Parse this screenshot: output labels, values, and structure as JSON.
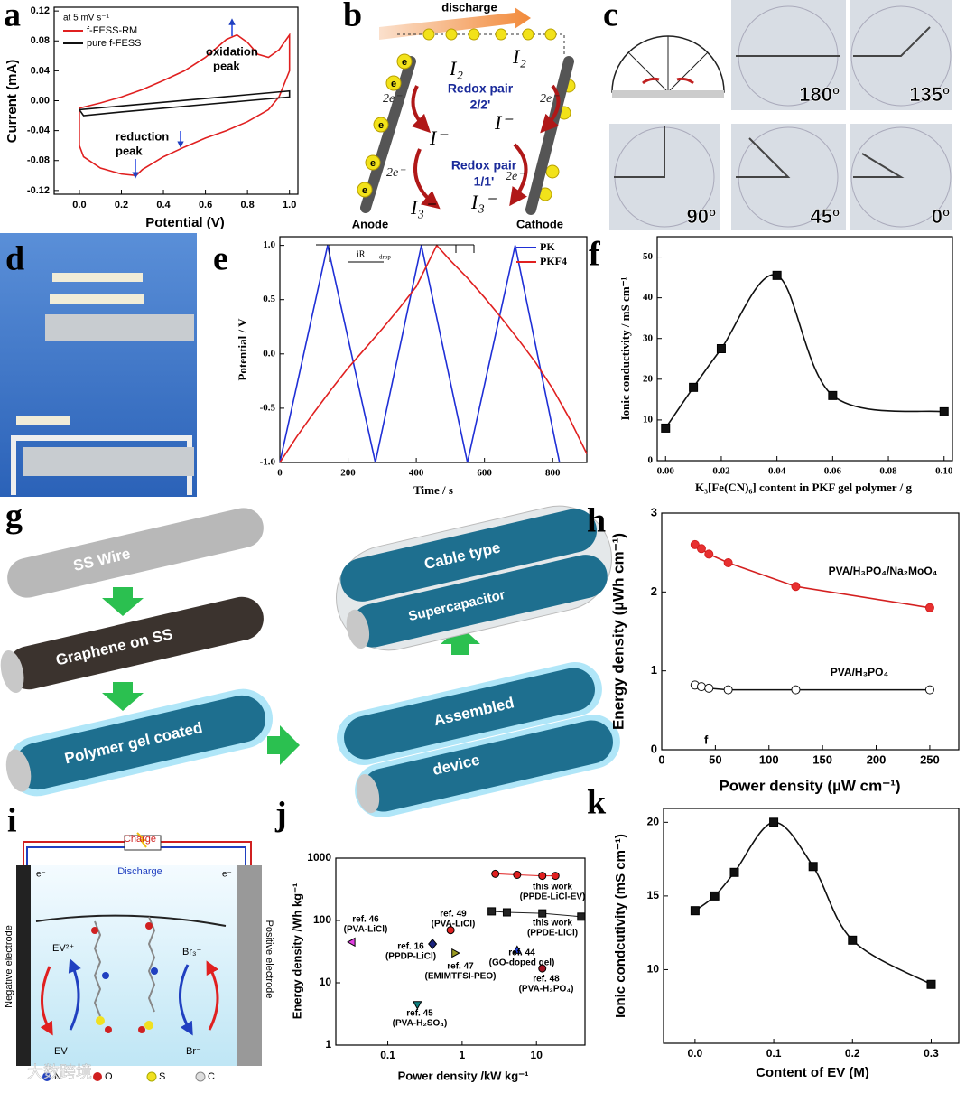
{
  "chart_data": [
    {
      "type": "line",
      "xlabel": "Potential (V)",
      "ylabel": "Current (mA)",
      "legend": "upper left",
      "legend_title": "at 5 mV s⁻¹",
      "xlim": [
        -0.12,
        1.04
      ],
      "ylim": [
        -0.125,
        0.125
      ],
      "xticks": [
        {
          "value": 0,
          "label": "0.0"
        },
        0.2,
        0.4,
        0.6,
        0.8,
        {
          "value": 1,
          "label": "1.0"
        }
      ],
      "yticks": [
        -0.12,
        -0.08,
        -0.04,
        {
          "value": 0,
          "label": "0.00"
        },
        0.04,
        0.08,
        0.12
      ],
      "annotations": [
        "oxidation",
        "peak",
        "reduction",
        "peak"
      ],
      "series": [
        {
          "name": "f-FESS-RM",
          "color": "#e02020",
          "x": [
            0,
            0.1,
            0.2,
            0.3,
            0.4,
            0.5,
            0.6,
            0.7,
            0.75,
            0.8,
            0.85,
            0.9,
            0.95,
            1.0,
            1.0,
            0.95,
            0.9,
            0.8,
            0.7,
            0.6,
            0.5,
            0.4,
            0.3,
            0.27,
            0.2,
            0.1,
            0.02,
            0.0,
            0.0
          ],
          "values": [
            -0.01,
            -0.003,
            0.005,
            0.015,
            0.027,
            0.04,
            0.058,
            0.082,
            0.088,
            0.078,
            0.062,
            0.058,
            0.068,
            0.088,
            0.04,
            0.005,
            -0.012,
            -0.028,
            -0.04,
            -0.05,
            -0.062,
            -0.075,
            -0.092,
            -0.1,
            -0.098,
            -0.09,
            -0.075,
            -0.06,
            -0.01
          ]
        },
        {
          "name": "pure f-FESS",
          "color": "#111111",
          "x": [
            0,
            0.2,
            0.4,
            0.6,
            0.8,
            1.0,
            1.0,
            0.8,
            0.6,
            0.4,
            0.2,
            0.02,
            0.0
          ],
          "values": [
            -0.012,
            -0.007,
            -0.002,
            0.003,
            0.008,
            0.013,
            0.005,
            0.0,
            -0.005,
            -0.01,
            -0.015,
            -0.02,
            -0.012
          ]
        }
      ]
    },
    {
      "type": "line",
      "xlabel": "Time / s",
      "ylabel": "Potential / V",
      "legend": "upper right",
      "xlim": [
        0,
        900
      ],
      "ylim": [
        -1,
        1.08
      ],
      "xticks": [
        0,
        200,
        400,
        600,
        800
      ],
      "yticks": [
        {
          "value": -1,
          "label": "-1.0"
        },
        -0.5,
        {
          "value": 0,
          "label": "0.0"
        },
        0.5,
        {
          "value": 1,
          "label": "1.0"
        }
      ],
      "annotations": [
        "iR",
        "drop"
      ],
      "series": [
        {
          "name": "PK",
          "color": "#1f2fd6",
          "x": [
            0,
            140,
            280,
            415,
            550,
            690,
            820
          ],
          "values": [
            -1,
            1,
            -1,
            1,
            -1,
            1,
            -1
          ]
        },
        {
          "name": "PKF4",
          "color": "#e02020",
          "x": [
            0,
            50,
            100,
            150,
            200,
            250,
            300,
            350,
            400,
            460,
            500,
            550,
            600,
            650,
            700,
            750,
            800,
            850,
            900
          ],
          "values": [
            -1,
            -0.76,
            -0.54,
            -0.33,
            -0.13,
            0.05,
            0.23,
            0.42,
            0.62,
            1,
            0.86,
            0.7,
            0.52,
            0.33,
            0.13,
            -0.08,
            -0.32,
            -0.6,
            -0.92
          ]
        }
      ]
    },
    {
      "type": "line",
      "smooth": true,
      "xlabel": "K₃[Fe(CN)₆] content in PKF gel polymer / g",
      "ylabel": "Ionic conductivity / mS cm⁻¹",
      "xlim": [
        -0.003,
        0.103
      ],
      "ylim": [
        0,
        55
      ],
      "xticks": [
        {
          "value": 0,
          "label": "0.00"
        },
        0.02,
        0.04,
        0.06,
        0.08,
        {
          "value": 0.1,
          "label": "0.10"
        }
      ],
      "yticks": [
        0,
        10,
        20,
        30,
        40,
        50
      ],
      "series": [
        {
          "color": "#111111",
          "marker": "square",
          "x": [
            0,
            0.01,
            0.02,
            0.04,
            0.06,
            0.1
          ],
          "values": [
            8,
            18,
            27.5,
            45.5,
            16,
            12
          ]
        }
      ]
    },
    {
      "type": "line",
      "xlabel": "Power density (µW cm⁻¹)",
      "ylabel": "Energy density (µWh cm⁻¹)",
      "xlim": [
        0,
        277
      ],
      "ylim": [
        0,
        3
      ],
      "xticks": [
        0,
        50,
        100,
        150,
        200,
        250
      ],
      "yticks": [
        0,
        1,
        2,
        3
      ],
      "annotations": [
        "f"
      ],
      "series": [
        {
          "name": "PVA/H₃PO₄/Na₂MoO₄",
          "color": "#d42020",
          "marker": "circle",
          "marker_fill": "#e83030",
          "x": [
            31,
            37,
            44,
            62,
            125,
            250
          ],
          "values": [
            2.6,
            2.55,
            2.48,
            2.37,
            2.07,
            1.8
          ]
        },
        {
          "name": "PVA/H₃PO₄",
          "color": "#111111",
          "marker": "circle",
          "marker_fill": "#ffffff",
          "x": [
            31,
            37,
            44,
            62,
            125,
            250
          ],
          "values": [
            0.82,
            0.8,
            0.78,
            0.76,
            0.76,
            0.76
          ]
        }
      ]
    },
    {
      "type": "scatter",
      "xlog": true,
      "ylog": true,
      "xlabel": "Power density /kW kg⁻¹",
      "ylabel": "Energy density /Wh kg⁻¹",
      "xlim": [
        0.02,
        45
      ],
      "ylim": [
        1,
        1000
      ],
      "xticks": [
        0.1,
        1,
        10
      ],
      "yticks": [
        1,
        10,
        100,
        1000
      ],
      "series": [
        {
          "label": [
            "this work",
            "(PPDE-LiCl-EV)"
          ],
          "connected": true,
          "color": "#e02020",
          "marker": "circle",
          "x": [
            2.8,
            5.5,
            12,
            18
          ],
          "values": [
            560,
            540,
            520,
            520
          ]
        },
        {
          "label": [
            "this work",
            "(PPDE-LiCl)"
          ],
          "connected": true,
          "color": "#222222",
          "marker": "square",
          "x": [
            2.5,
            4,
            12,
            40
          ],
          "values": [
            140,
            135,
            130,
            115
          ]
        },
        {
          "label": [
            "ref. 46",
            "(PVA-LiCl)"
          ],
          "color": "#e040e0",
          "marker": "triangle-left",
          "x": [
            0.033
          ],
          "values": [
            45
          ]
        },
        {
          "label": [
            "ref. 16",
            "(PPDP-LiCl)"
          ],
          "color": "#1a237e",
          "marker": "diamond",
          "x": [
            0.4
          ],
          "values": [
            42
          ]
        },
        {
          "label": [
            "ref. 49",
            "(PVA-LiCl)"
          ],
          "color": "#e02020",
          "marker": "circle",
          "x": [
            0.7
          ],
          "values": [
            70
          ]
        },
        {
          "label": [
            "ref. 47",
            "(EMIMTFSI-PEO)"
          ],
          "color": "#9a9a20",
          "marker": "triangle-right",
          "x": [
            0.8
          ],
          "values": [
            30
          ]
        },
        {
          "label": [
            "ref. 44",
            "(GO-doped gel)"
          ],
          "color": "#2040e0",
          "marker": "triangle",
          "x": [
            5.5
          ],
          "values": [
            33
          ]
        },
        {
          "label": [
            "ref. 48",
            "(PVA-H₃PO₄)"
          ],
          "color": "#a01020",
          "marker": "circle",
          "x": [
            12
          ],
          "values": [
            17
          ]
        },
        {
          "label": [
            "ref. 45",
            "(PVA-H₂SO₄)"
          ],
          "color": "#108080",
          "marker": "triangle-down",
          "x": [
            0.25
          ],
          "values": [
            4.5
          ]
        }
      ]
    },
    {
      "type": "line",
      "smooth": true,
      "xlabel": "Content of EV (M)",
      "ylabel": "Ionic condcutivity (mS cm⁻¹)",
      "xlim": [
        -0.04,
        0.335
      ],
      "ylim": [
        5,
        20.94
      ],
      "xticks": [
        {
          "value": 0,
          "label": "0.0"
        },
        0.1,
        0.2,
        0.3
      ],
      "yticks": [
        10,
        15,
        20
      ],
      "series": [
        {
          "color": "#111111",
          "marker": "square",
          "x": [
            0,
            0.025,
            0.05,
            0.1,
            0.15,
            0.2,
            0.3
          ],
          "values": [
            14,
            15,
            16.6,
            20,
            17,
            12,
            9
          ]
        }
      ]
    }
  ],
  "diagrams": {
    "panel_labels": [
      "a",
      "b",
      "c",
      "d",
      "e",
      "f",
      "g",
      "h",
      "i",
      "j",
      "k"
    ],
    "b": {
      "discharge": "discharge",
      "species": [
        "I₂",
        "I₂",
        "I⁻",
        "I⁻",
        "I₃⁻",
        "I₃⁻"
      ],
      "electrons": [
        "2e⁻",
        "2e⁻",
        "2e⁻",
        "2e⁻"
      ],
      "redox_pair": [
        "Redox pair",
        "2/2'",
        "Redox pair",
        "1/1'"
      ],
      "balls": [
        "e",
        "e",
        "e",
        "e",
        "e"
      ],
      "anode": "Anode",
      "cathode": "Cathode"
    },
    "c": {
      "angles": [
        "180º",
        "135º",
        "90º",
        "45º",
        "0º"
      ]
    },
    "g": {
      "steps": [
        "SS Wire",
        "Graphene on SS",
        "Polymer gel coated",
        "Assembled",
        "device",
        "Cable type",
        "Supercapacitor"
      ]
    },
    "i": {
      "charge": "Charge",
      "discharge": "Discharge",
      "electrons": [
        "e⁻",
        "e⁻"
      ],
      "negative": "Negative electrode",
      "positive": "Positive electrode",
      "species": [
        "EV²⁺",
        "EV",
        "Br₃⁻",
        "Br⁻"
      ],
      "atoms": [
        "N",
        "O",
        "S",
        "C"
      ],
      "watermark": "大数跨境"
    }
  }
}
